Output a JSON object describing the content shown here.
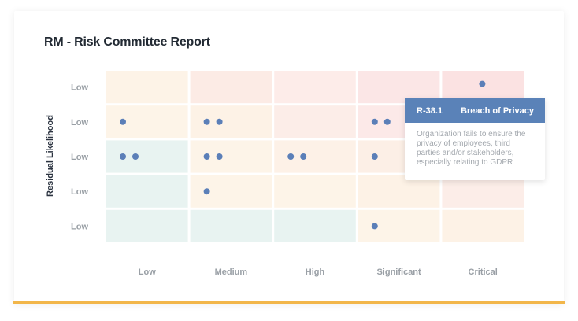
{
  "report": {
    "title": "RM - Risk Committee Report"
  },
  "chart_data": {
    "type": "scatter",
    "title": "RM - Risk Committee Report",
    "ylabel": "Residual Likelihood",
    "xlabel": "",
    "x_categories": [
      "Low",
      "Medium",
      "High",
      "Significant",
      "Critical"
    ],
    "y_categories": [
      "Low",
      "Low",
      "Low",
      "Low",
      "Low"
    ],
    "cell_colors": [
      [
        "#fdf3e7",
        "#fcebe5",
        "#fdece9",
        "#fbe6e6",
        "#fbe2e2"
      ],
      [
        "#fdf4e8",
        "#fdf2e6",
        "#fcede8",
        "#fce9e8",
        "#fce7e7"
      ],
      [
        "#e8f3f1",
        "#fdf4e8",
        "#fdf1e7",
        "#fcefe6",
        "#fcebe8"
      ],
      [
        "#e8f3f1",
        "#fdf4e8",
        "#fdf4e8",
        "#fdf2e6",
        "#fcede8"
      ],
      [
        "#e8f3f1",
        "#e8f3f1",
        "#e8f3f1",
        "#fdf4e8",
        "#fdf2e6"
      ]
    ],
    "point_color": "#5b7fb8",
    "grid": false,
    "points": [
      {
        "x": 4,
        "y": 0,
        "n": 1
      },
      {
        "x": 0,
        "y": 1,
        "n": 1
      },
      {
        "x": 1,
        "y": 1,
        "n": 2
      },
      {
        "x": 3,
        "y": 1,
        "n": 2
      },
      {
        "x": 0,
        "y": 2,
        "n": 2
      },
      {
        "x": 1,
        "y": 2,
        "n": 2
      },
      {
        "x": 2,
        "y": 2,
        "n": 2
      },
      {
        "x": 3,
        "y": 2,
        "n": 1
      },
      {
        "x": 1,
        "y": 3,
        "n": 1
      },
      {
        "x": 3,
        "y": 4,
        "n": 1
      }
    ],
    "tooltip": {
      "id": "R-38.1",
      "name": "Breach of Privacy",
      "description": "Organization fails to ensure the privacy of employees, third parties and/or stakeholders, especially relating to GDPR"
    }
  }
}
